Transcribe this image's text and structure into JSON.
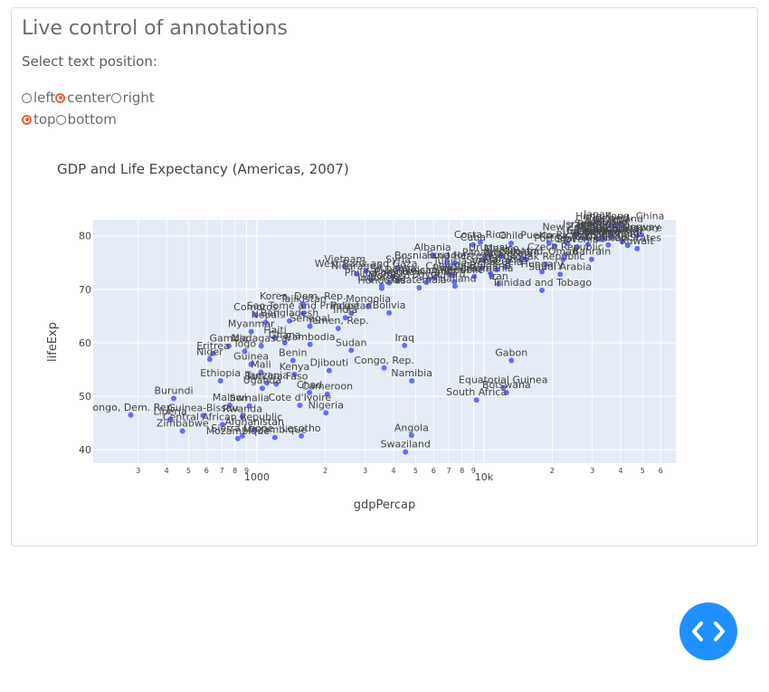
{
  "page": {
    "title": "Live control of annotations",
    "subtitle": "Select text position:",
    "horizontal_options": [
      {
        "label": "left",
        "selected": false
      },
      {
        "label": "center",
        "selected": true
      },
      {
        "label": "right",
        "selected": false
      }
    ],
    "vertical_options": [
      {
        "label": "top",
        "selected": true
      },
      {
        "label": "bottom",
        "selected": false
      }
    ],
    "accent_color": "#e8603c",
    "fab_color": "#1e90ff",
    "fab_icon": "code-icon"
  },
  "chart_data": {
    "type": "scatter",
    "title": "GDP and Life Expectancy (Americas, 2007)",
    "xlabel": "gdpPercap",
    "ylabel": "lifeExp",
    "xscale": "log",
    "xlim": [
      190,
      70000
    ],
    "ylim": [
      37.5,
      83
    ],
    "yticks": [
      40,
      50,
      60,
      70,
      80
    ],
    "xtick_labels": [
      {
        "v": 300,
        "t": "3"
      },
      {
        "v": 400,
        "t": "4"
      },
      {
        "v": 500,
        "t": "5"
      },
      {
        "v": 600,
        "t": "6"
      },
      {
        "v": 700,
        "t": "7"
      },
      {
        "v": 800,
        "t": "8"
      },
      {
        "v": 900,
        "t": "9"
      },
      {
        "v": 1000,
        "t": "1000"
      },
      {
        "v": 2000,
        "t": "2"
      },
      {
        "v": 3000,
        "t": "3"
      },
      {
        "v": 4000,
        "t": "4"
      },
      {
        "v": 5000,
        "t": "5"
      },
      {
        "v": 6000,
        "t": "6"
      },
      {
        "v": 7000,
        "t": "7"
      },
      {
        "v": 8000,
        "t": "8"
      },
      {
        "v": 9000,
        "t": "9"
      },
      {
        "v": 10000,
        "t": "10k"
      },
      {
        "v": 20000,
        "t": "2"
      },
      {
        "v": 30000,
        "t": "3"
      },
      {
        "v": 40000,
        "t": "4"
      },
      {
        "v": 50000,
        "t": "5"
      },
      {
        "v": 60000,
        "t": "6"
      }
    ],
    "marker_color": "#636efa",
    "grid": true,
    "text_position": "top center",
    "points": [
      {
        "country": "Congo, Dem. Rep.",
        "x": 278,
        "y": 46.5
      },
      {
        "country": "Burundi",
        "x": 430,
        "y": 49.6
      },
      {
        "country": "Liberia",
        "x": 415,
        "y": 45.7
      },
      {
        "country": "Guinea-Bissau",
        "x": 579,
        "y": 46.4
      },
      {
        "country": "Zimbabwe",
        "x": 470,
        "y": 43.5
      },
      {
        "country": "Central African Republic",
        "x": 706,
        "y": 44.7
      },
      {
        "country": "Niger",
        "x": 620,
        "y": 56.9
      },
      {
        "country": "Eritrea",
        "x": 641,
        "y": 58.0
      },
      {
        "country": "Ethiopia",
        "x": 691,
        "y": 52.9
      },
      {
        "country": "Gambia",
        "x": 752,
        "y": 59.4
      },
      {
        "country": "Togo",
        "x": 883,
        "y": 58.4
      },
      {
        "country": "Malawi",
        "x": 759,
        "y": 48.3
      },
      {
        "country": "Sierra Leone",
        "x": 863,
        "y": 42.6
      },
      {
        "country": "Mozambique",
        "x": 824,
        "y": 42.1
      },
      {
        "country": "Guinea",
        "x": 943,
        "y": 56.0
      },
      {
        "country": "Somalia",
        "x": 926,
        "y": 48.2
      },
      {
        "country": "Rwanda",
        "x": 863,
        "y": 46.2
      },
      {
        "country": "Afghanistan",
        "x": 975,
        "y": 43.8
      },
      {
        "country": "Madagascar",
        "x": 1045,
        "y": 59.4
      },
      {
        "country": "Myanmar",
        "x": 944,
        "y": 62.1
      },
      {
        "country": "Nepal",
        "x": 1091,
        "y": 63.8
      },
      {
        "country": "Mali",
        "x": 1042,
        "y": 54.5
      },
      {
        "country": "Tanzania",
        "x": 1107,
        "y": 52.5
      },
      {
        "country": "Uganda",
        "x": 1056,
        "y": 51.5
      },
      {
        "country": "Comoros",
        "x": 986,
        "y": 65.2
      },
      {
        "country": "Haiti",
        "x": 1202,
        "y": 60.9
      },
      {
        "country": "Burkina Faso",
        "x": 1217,
        "y": 52.3
      },
      {
        "country": "Bangladesh",
        "x": 1391,
        "y": 64.1
      },
      {
        "country": "Mozambique",
        "x": 1200,
        "y": 42.3
      },
      {
        "country": "Kenya",
        "x": 1463,
        "y": 54.1
      },
      {
        "country": "Benin",
        "x": 1441,
        "y": 56.7
      },
      {
        "country": "Chad",
        "x": 1704,
        "y": 50.7
      },
      {
        "country": "Cote d'Ivoire",
        "x": 1545,
        "y": 48.3
      },
      {
        "country": "Lesotho",
        "x": 1569,
        "y": 42.6
      },
      {
        "country": "Tajikistan",
        "x": 1600,
        "y": 66.8
      },
      {
        "country": "Senegal",
        "x": 1712,
        "y": 63.1
      },
      {
        "country": "Ghana",
        "x": 1327,
        "y": 60.0
      },
      {
        "country": "Cambodia",
        "x": 1714,
        "y": 59.7
      },
      {
        "country": "Korea, Dem. Rep.",
        "x": 1593,
        "y": 67.3
      },
      {
        "country": "Sao Tome and Principe",
        "x": 1598,
        "y": 65.5
      },
      {
        "country": "Yemen, Rep.",
        "x": 2281,
        "y": 62.7
      },
      {
        "country": "Djibouti",
        "x": 2082,
        "y": 54.8
      },
      {
        "country": "Cameroon",
        "x": 2042,
        "y": 50.4
      },
      {
        "country": "Nigeria",
        "x": 2014,
        "y": 46.9
      },
      {
        "country": "Pakistan",
        "x": 2606,
        "y": 65.5
      },
      {
        "country": "India",
        "x": 2452,
        "y": 64.7
      },
      {
        "country": "Sudan",
        "x": 2602,
        "y": 58.6
      },
      {
        "country": "Mongolia",
        "x": 3096,
        "y": 66.8
      },
      {
        "country": "Vietnam",
        "x": 2442,
        "y": 74.2
      },
      {
        "country": "Nicaragua",
        "x": 2749,
        "y": 72.9
      },
      {
        "country": "Bolivia",
        "x": 3822,
        "y": 65.6
      },
      {
        "country": "Congo, Rep.",
        "x": 3633,
        "y": 55.3
      },
      {
        "country": "Honduras",
        "x": 3548,
        "y": 70.2
      },
      {
        "country": "Iraq",
        "x": 4471,
        "y": 59.5
      },
      {
        "country": "Angola",
        "x": 4797,
        "y": 42.7
      },
      {
        "country": "Swaziland",
        "x": 4513,
        "y": 39.6
      },
      {
        "country": "Namibia",
        "x": 4811,
        "y": 52.9
      },
      {
        "country": "West Bank and Gaza",
        "x": 3025,
        "y": 73.4
      },
      {
        "country": "Philippines",
        "x": 3190,
        "y": 71.7
      },
      {
        "country": "Indonesia",
        "x": 3541,
        "y": 70.7
      },
      {
        "country": "Guatemala",
        "x": 5186,
        "y": 70.3
      },
      {
        "country": "Syria",
        "x": 4185,
        "y": 74.1
      },
      {
        "country": "Morocco",
        "x": 3820,
        "y": 71.2
      },
      {
        "country": "Sri Lanka",
        "x": 3970,
        "y": 72.4
      },
      {
        "country": "Bosnia and Herzegovina",
        "x": 7446,
        "y": 74.9
      },
      {
        "country": "Albania",
        "x": 5937,
        "y": 76.4
      },
      {
        "country": "Ecuador",
        "x": 6873,
        "y": 75.0
      },
      {
        "country": "Jamaica",
        "x": 7321,
        "y": 72.6
      },
      {
        "country": "Peru",
        "x": 7409,
        "y": 71.4
      },
      {
        "country": "Colombia",
        "x": 7007,
        "y": 72.9
      },
      {
        "country": "Tunisia",
        "x": 7093,
        "y": 73.9
      },
      {
        "country": "El Salvador",
        "x": 5728,
        "y": 71.9
      },
      {
        "country": "Egypt",
        "x": 5581,
        "y": 71.3
      },
      {
        "country": "Paraguay",
        "x": 4173,
        "y": 71.8
      },
      {
        "country": "Cuba",
        "x": 8948,
        "y": 78.3
      },
      {
        "country": "Costa Rica",
        "x": 9645,
        "y": 78.8
      },
      {
        "country": "Dominican Republic",
        "x": 6025,
        "y": 72.2
      },
      {
        "country": "Brazil",
        "x": 9066,
        "y": 72.4
      },
      {
        "country": "Thailand",
        "x": 7458,
        "y": 70.6
      },
      {
        "country": "Panama",
        "x": 9809,
        "y": 75.5
      },
      {
        "country": "Serbia",
        "x": 9787,
        "y": 74.0
      },
      {
        "country": "Bulgaria",
        "x": 10681,
        "y": 73.0
      },
      {
        "country": "Romania",
        "x": 10808,
        "y": 72.5
      },
      {
        "country": "Iran",
        "x": 11606,
        "y": 71.0
      },
      {
        "country": "South Africa",
        "x": 9270,
        "y": 49.3
      },
      {
        "country": "Botswana",
        "x": 12570,
        "y": 50.7
      },
      {
        "country": "Gabon",
        "x": 13206,
        "y": 56.7
      },
      {
        "country": "Equatorial Guinea",
        "x": 12154,
        "y": 51.6
      },
      {
        "country": "Chile",
        "x": 13172,
        "y": 78.6
      },
      {
        "country": "Argentina",
        "x": 12779,
        "y": 75.3
      },
      {
        "country": "Uruguay",
        "x": 10611,
        "y": 76.4
      },
      {
        "country": "Mexico",
        "x": 11978,
        "y": 76.2
      },
      {
        "country": "Malaysia",
        "x": 12452,
        "y": 74.2
      },
      {
        "country": "Venezuela",
        "x": 11416,
        "y": 73.7
      },
      {
        "country": "Trinidad and Tobago",
        "x": 18009,
        "y": 69.8
      },
      {
        "country": "Puerto Rico",
        "x": 19329,
        "y": 78.7
      },
      {
        "country": "Poland",
        "x": 15390,
        "y": 75.6
      },
      {
        "country": "Hungary",
        "x": 18009,
        "y": 73.3
      },
      {
        "country": "Croatia",
        "x": 14619,
        "y": 75.7
      },
      {
        "country": "Saudi Arabia",
        "x": 21655,
        "y": 72.8
      },
      {
        "country": "Slovak Republic",
        "x": 18678,
        "y": 74.7
      },
      {
        "country": "Portugal",
        "x": 20510,
        "y": 78.1
      },
      {
        "country": "Czech Republic",
        "x": 22833,
        "y": 76.5
      },
      {
        "country": "Oman",
        "x": 22316,
        "y": 75.6
      },
      {
        "country": "Bahrain",
        "x": 29796,
        "y": 75.6
      },
      {
        "country": "Korea, Rep.",
        "x": 23348,
        "y": 78.6
      },
      {
        "country": "Slovenia",
        "x": 25768,
        "y": 77.9
      },
      {
        "country": "New Zealand",
        "x": 25185,
        "y": 80.2
      },
      {
        "country": "Greece",
        "x": 27538,
        "y": 79.5
      },
      {
        "country": "Israel",
        "x": 25523,
        "y": 80.7
      },
      {
        "country": "Italy",
        "x": 28570,
        "y": 80.5
      },
      {
        "country": "Spain",
        "x": 28821,
        "y": 80.9
      },
      {
        "country": "France",
        "x": 30470,
        "y": 80.7
      },
      {
        "country": "Japan",
        "x": 31656,
        "y": 82.6
      },
      {
        "country": "Hong Kong, China",
        "x": 39725,
        "y": 82.2
      },
      {
        "country": "Canada",
        "x": 36319,
        "y": 80.7
      },
      {
        "country": "Australia",
        "x": 34435,
        "y": 81.2
      },
      {
        "country": "Iceland",
        "x": 36181,
        "y": 81.8
      },
      {
        "country": "Denmark",
        "x": 35278,
        "y": 78.3
      },
      {
        "country": "Ireland",
        "x": 40676,
        "y": 78.9
      },
      {
        "country": "Netherlands",
        "x": 36798,
        "y": 79.8
      },
      {
        "country": "Switzerland",
        "x": 37506,
        "y": 81.7
      },
      {
        "country": "Austria",
        "x": 36126,
        "y": 79.8
      },
      {
        "country": "Sweden",
        "x": 33860,
        "y": 80.9
      },
      {
        "country": "United Kingdom",
        "x": 33203,
        "y": 79.4
      },
      {
        "country": "Finland",
        "x": 33207,
        "y": 79.3
      },
      {
        "country": "Belgium",
        "x": 33693,
        "y": 79.4
      },
      {
        "country": "Germany",
        "x": 32170,
        "y": 79.4
      },
      {
        "country": "Taiwan",
        "x": 28718,
        "y": 78.4
      },
      {
        "country": "Singapore",
        "x": 47143,
        "y": 80.0
      },
      {
        "country": "United States",
        "x": 42952,
        "y": 78.2
      },
      {
        "country": "Norway",
        "x": 49357,
        "y": 80.2
      },
      {
        "country": "Kuwait",
        "x": 47307,
        "y": 77.6
      }
    ]
  }
}
